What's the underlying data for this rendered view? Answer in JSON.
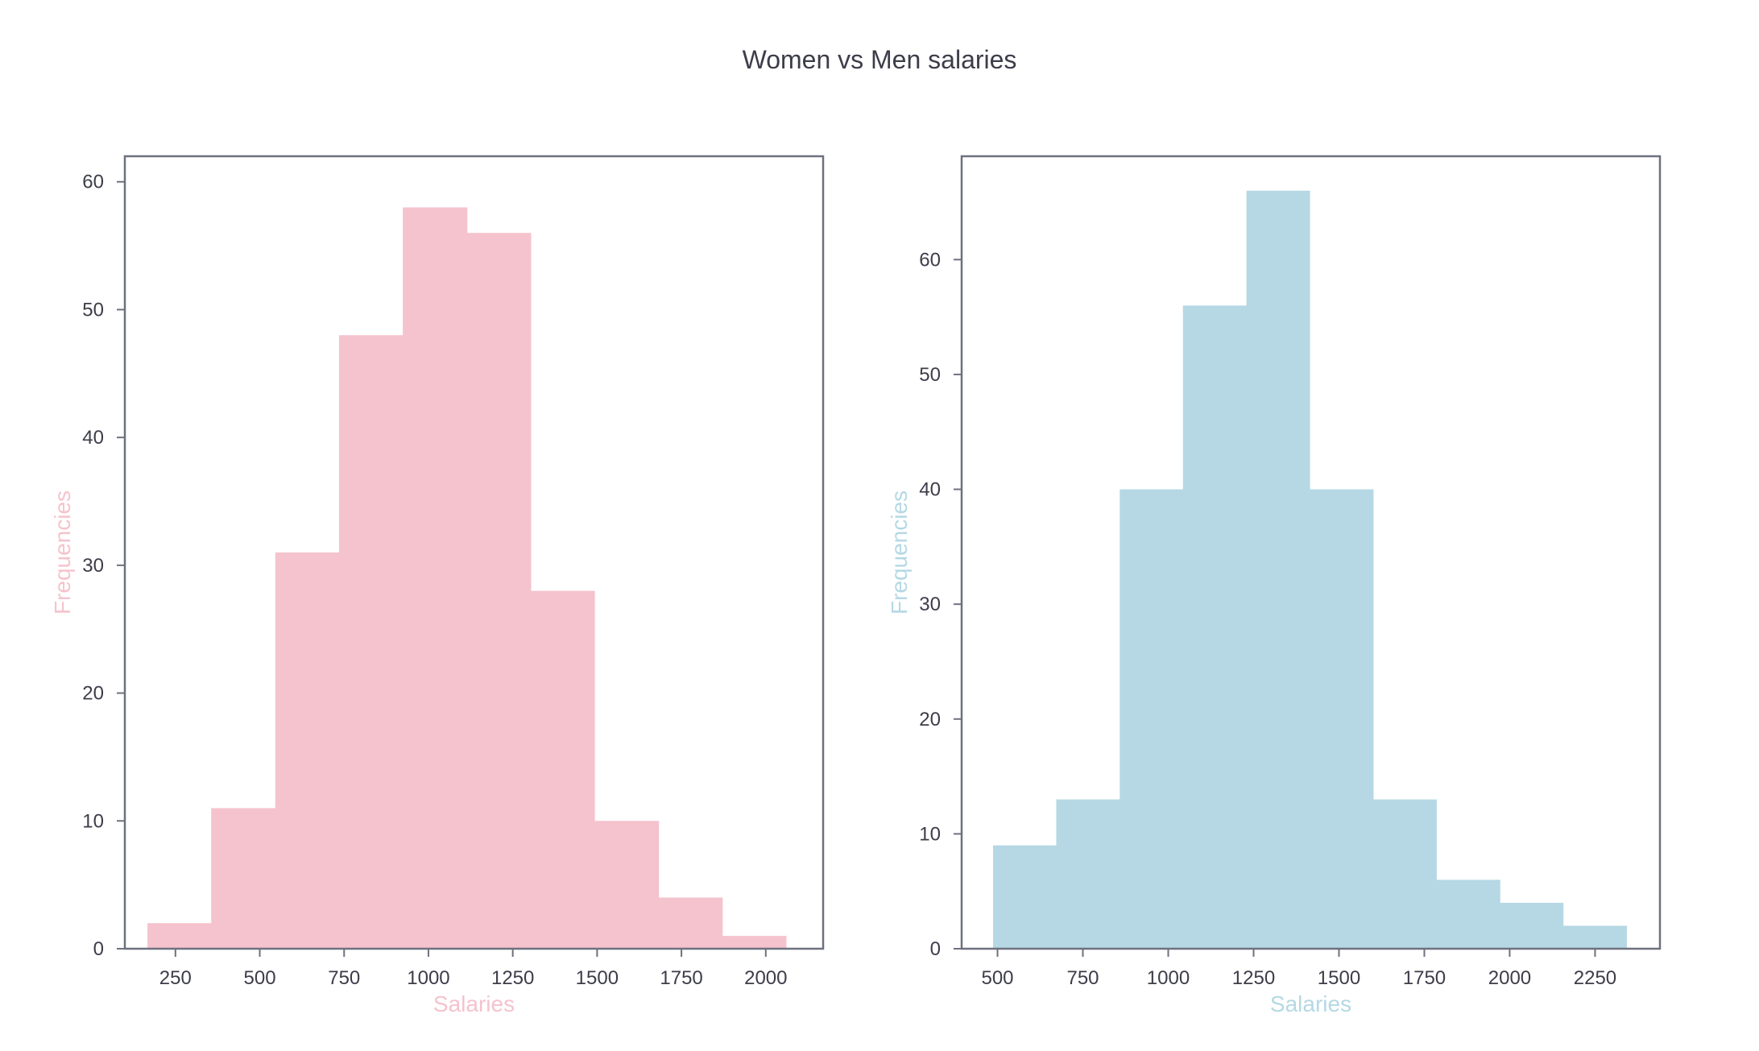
{
  "title": "Women vs Men salaries",
  "chart_data": [
    {
      "type": "bar",
      "histogram": true,
      "color": "#f5c3cd",
      "xlabel": "Salaries",
      "ylabel": "Frequencies",
      "xlim": [
        100,
        2170
      ],
      "ylim": [
        0,
        62
      ],
      "xticks": [
        250,
        500,
        750,
        1000,
        1250,
        1500,
        1750,
        2000
      ],
      "yticks": [
        0,
        10,
        20,
        30,
        40,
        50,
        60
      ],
      "bin_edges": [
        167,
        356,
        546,
        735,
        924,
        1114,
        1303,
        1492,
        1682,
        1871,
        2060
      ],
      "values": [
        2,
        11,
        31,
        48,
        58,
        56,
        28,
        10,
        4,
        1
      ]
    },
    {
      "type": "bar",
      "histogram": true,
      "color": "#b5d8e4",
      "xlabel": "Salaries",
      "ylabel": "Frequencies",
      "xlim": [
        395,
        2440
      ],
      "ylim": [
        0,
        69
      ],
      "xticks": [
        500,
        750,
        1000,
        1250,
        1500,
        1750,
        2000,
        2250
      ],
      "yticks": [
        0,
        10,
        20,
        30,
        40,
        50,
        60
      ],
      "bin_edges": [
        487,
        672,
        858,
        1043,
        1229,
        1414,
        1600,
        1785,
        1971,
        2156,
        2342
      ],
      "values": [
        9,
        13,
        40,
        56,
        66,
        40,
        13,
        6,
        4,
        2
      ]
    }
  ]
}
